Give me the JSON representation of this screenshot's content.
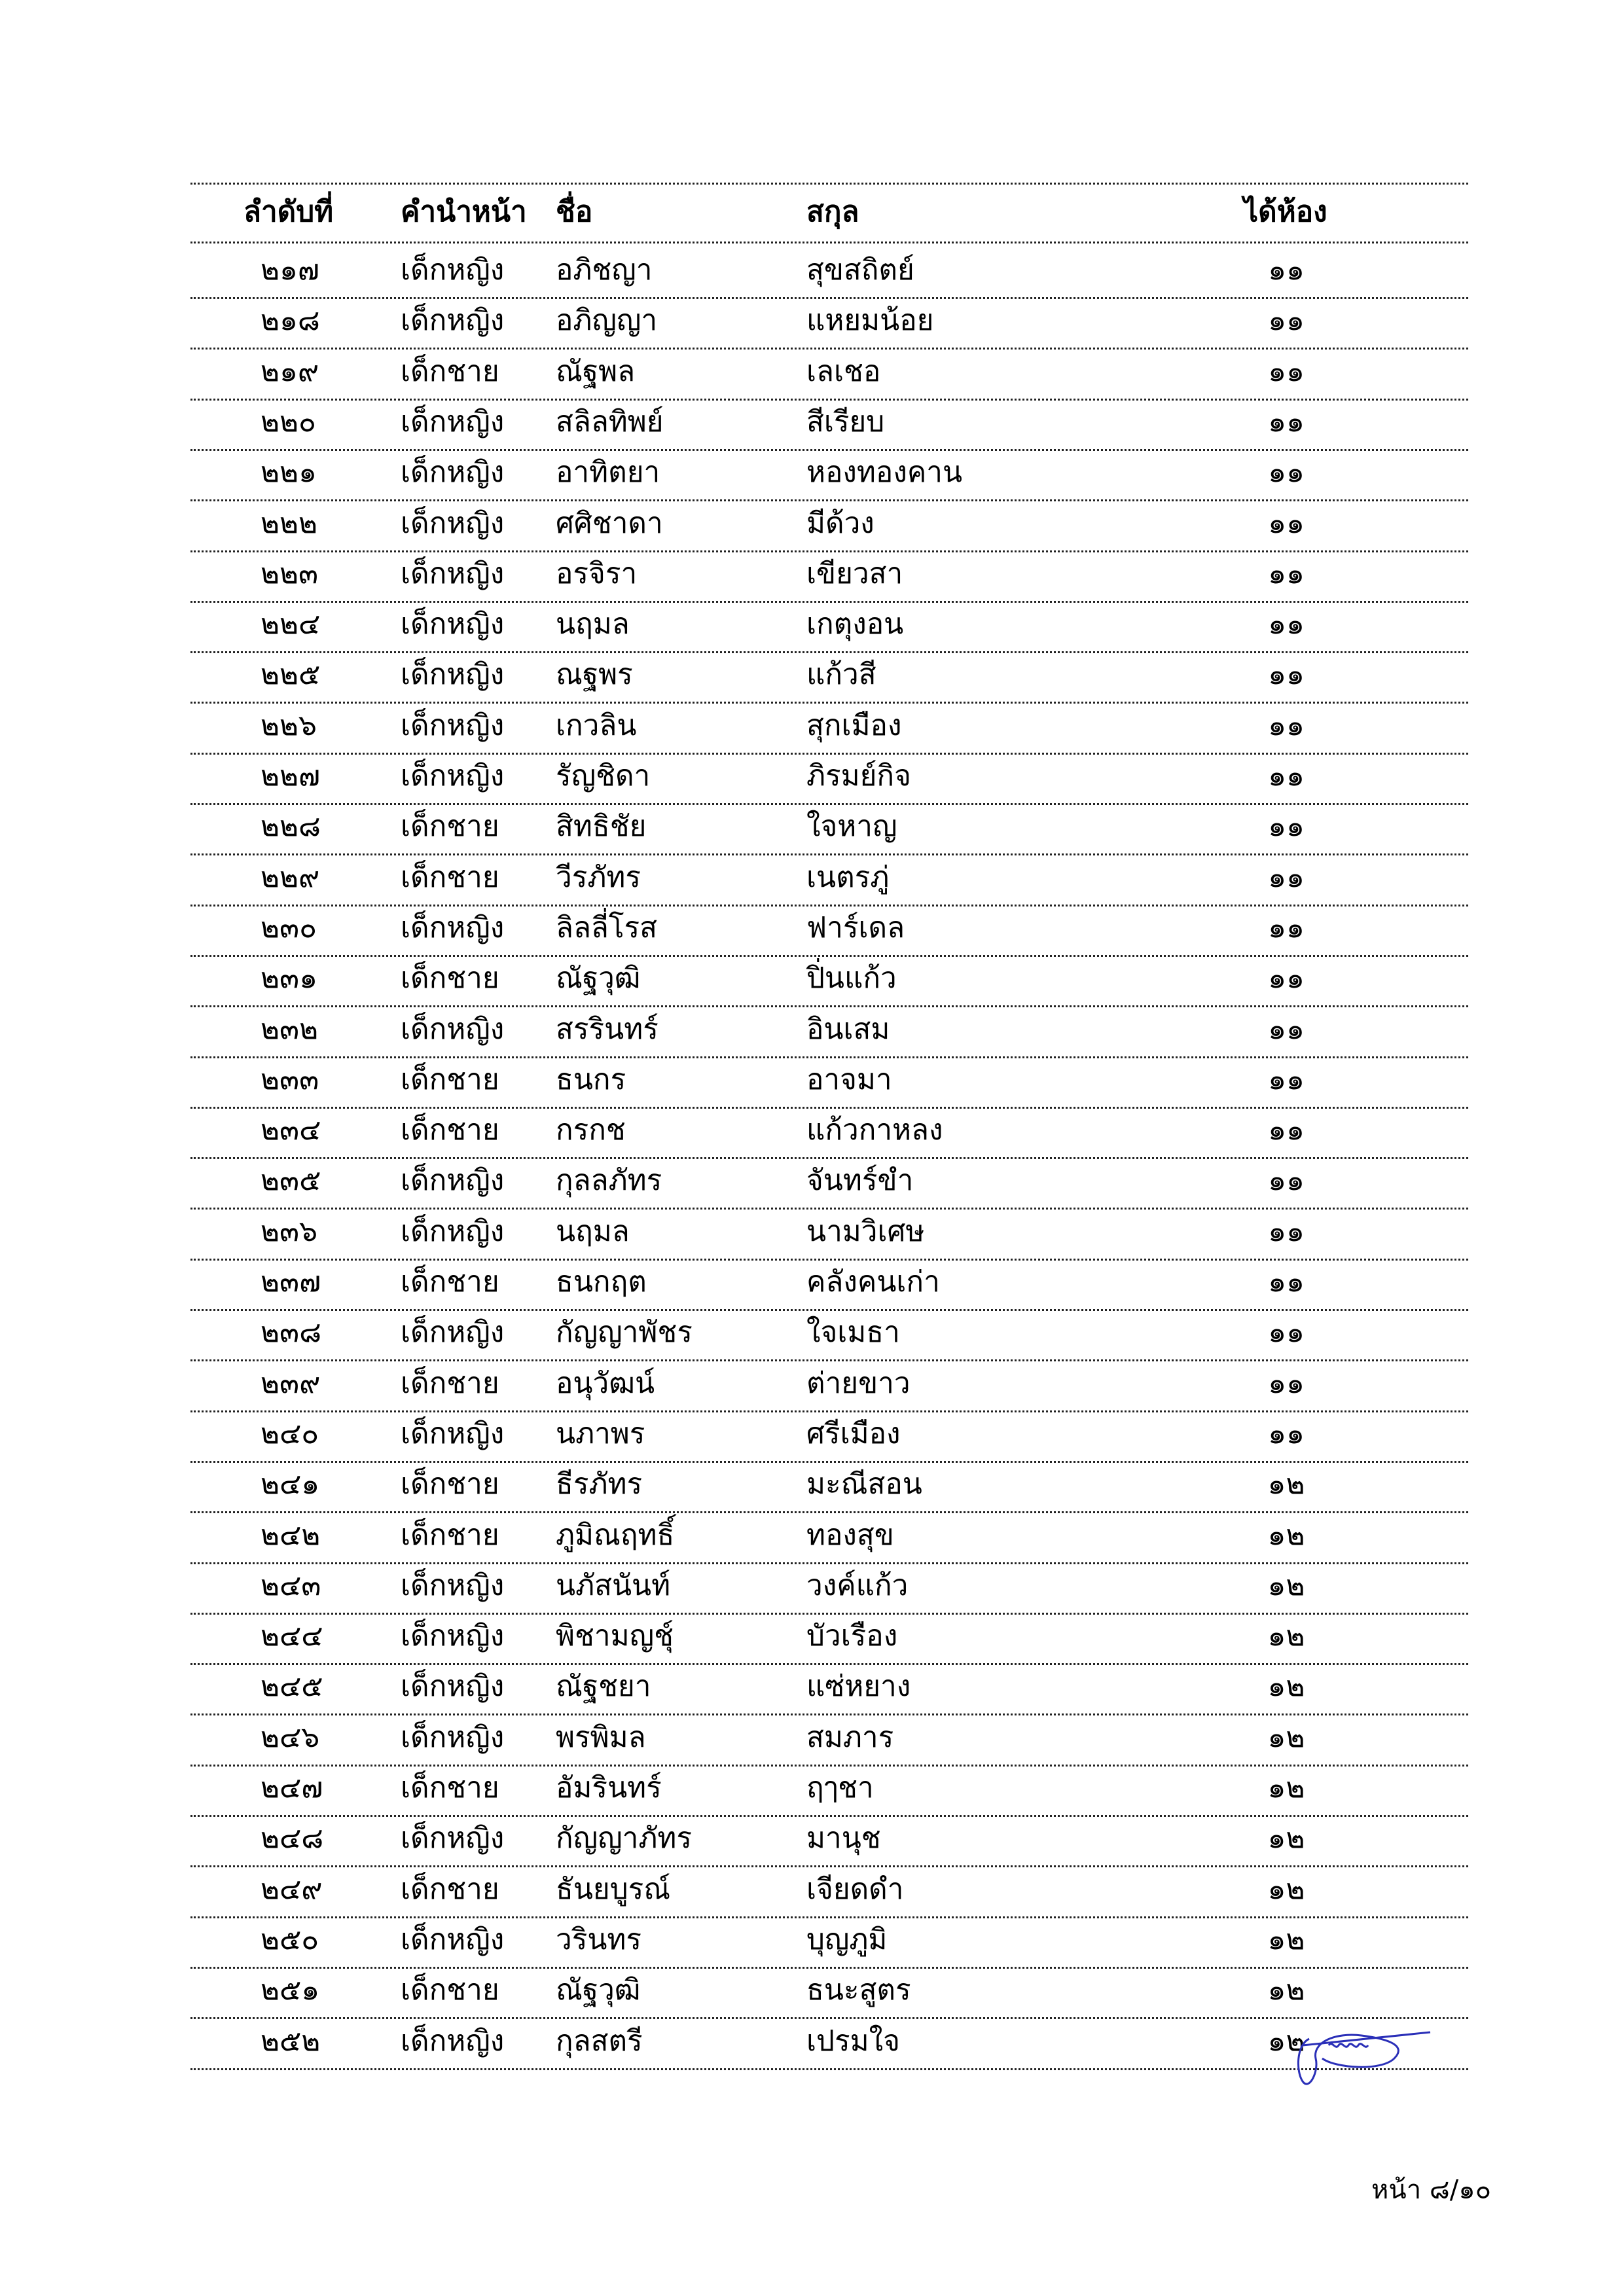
{
  "header": {
    "no": "ลำดับที่",
    "prefix": "คำนำหน้า",
    "first_name": "ชื่อ",
    "last_name": "สกุล",
    "room": "ได้ห้อง"
  },
  "rows": [
    {
      "no": "๒๑๗",
      "prefix": "เด็กหญิง",
      "first": "อภิชญา",
      "last": "สุขสถิตย์",
      "room": "๑๑"
    },
    {
      "no": "๒๑๘",
      "prefix": "เด็กหญิง",
      "first": "อภิญญา",
      "last": "แหยมน้อย",
      "room": "๑๑"
    },
    {
      "no": "๒๑๙",
      "prefix": "เด็กชาย",
      "first": "ณัฐพล",
      "last": "เลเชอ",
      "room": "๑๑"
    },
    {
      "no": "๒๒๐",
      "prefix": "เด็กหญิง",
      "first": "สลิลทิพย์",
      "last": "สีเรียบ",
      "room": "๑๑"
    },
    {
      "no": "๒๒๑",
      "prefix": "เด็กหญิง",
      "first": "อาทิตยา",
      "last": "หองทองคาน",
      "room": "๑๑"
    },
    {
      "no": "๒๒๒",
      "prefix": "เด็กหญิง",
      "first": "ศศิชาดา",
      "last": "มีด้วง",
      "room": "๑๑"
    },
    {
      "no": "๒๒๓",
      "prefix": "เด็กหญิง",
      "first": "อรจิรา",
      "last": "เขียวสา",
      "room": "๑๑"
    },
    {
      "no": "๒๒๔",
      "prefix": "เด็กหญิง",
      "first": "นฤมล",
      "last": "เกตุงอน",
      "room": "๑๑"
    },
    {
      "no": "๒๒๕",
      "prefix": "เด็กหญิง",
      "first": "ณฐพร",
      "last": "แก้วสี",
      "room": "๑๑"
    },
    {
      "no": "๒๒๖",
      "prefix": "เด็กหญิง",
      "first": "เกวลิน",
      "last": "สุกเมือง",
      "room": "๑๑"
    },
    {
      "no": "๒๒๗",
      "prefix": "เด็กหญิง",
      "first": "รัญชิดา",
      "last": "ภิรมย์กิจ",
      "room": "๑๑"
    },
    {
      "no": "๒๒๘",
      "prefix": "เด็กชาย",
      "first": "สิทธิชัย",
      "last": "ใจหาญ",
      "room": "๑๑"
    },
    {
      "no": "๒๒๙",
      "prefix": "เด็กชาย",
      "first": "วีรภัทร",
      "last": "เนตรภู่",
      "room": "๑๑"
    },
    {
      "no": "๒๓๐",
      "prefix": "เด็กหญิง",
      "first": "ลิลลี่โรส",
      "last": "ฟาร์เดล",
      "room": "๑๑"
    },
    {
      "no": "๒๓๑",
      "prefix": "เด็กชาย",
      "first": "ณัฐวุฒิ",
      "last": "ปิ่นแก้ว",
      "room": "๑๑"
    },
    {
      "no": "๒๓๒",
      "prefix": "เด็กหญิง",
      "first": "สรรินทร์",
      "last": "อินเสม",
      "room": "๑๑"
    },
    {
      "no": "๒๓๓",
      "prefix": "เด็กชาย",
      "first": "ธนกร",
      "last": "อาจมา",
      "room": "๑๑"
    },
    {
      "no": "๒๓๔",
      "prefix": "เด็กชาย",
      "first": "กรกช",
      "last": "แก้วกาหลง",
      "room": "๑๑"
    },
    {
      "no": "๒๓๕",
      "prefix": "เด็กหญิง",
      "first": "กุลลภัทร",
      "last": "จันทร์ขำ",
      "room": "๑๑"
    },
    {
      "no": "๒๓๖",
      "prefix": "เด็กหญิง",
      "first": "นฤมล",
      "last": "นามวิเศษ",
      "room": "๑๑"
    },
    {
      "no": "๒๓๗",
      "prefix": "เด็กชาย",
      "first": "ธนกฤต",
      "last": "คลังคนเก่า",
      "room": "๑๑"
    },
    {
      "no": "๒๓๘",
      "prefix": "เด็กหญิง",
      "first": "กัญญาพัชร",
      "last": "ใจเมธา",
      "room": "๑๑"
    },
    {
      "no": "๒๓๙",
      "prefix": "เด็กชาย",
      "first": "อนุวัฒน์",
      "last": "ต่ายขาว",
      "room": "๑๑"
    },
    {
      "no": "๒๔๐",
      "prefix": "เด็กหญิง",
      "first": "นภาพร",
      "last": "ศรีเมือง",
      "room": "๑๑"
    },
    {
      "no": "๒๔๑",
      "prefix": "เด็กชาย",
      "first": "ธีรภัทร",
      "last": "มะณีสอน",
      "room": "๑๒"
    },
    {
      "no": "๒๔๒",
      "prefix": "เด็กชาย",
      "first": "ภูมิณฤทธิ์",
      "last": "ทองสุข",
      "room": "๑๒"
    },
    {
      "no": "๒๔๓",
      "prefix": "เด็กหญิง",
      "first": "นภัสนันท์",
      "last": "วงค์แก้ว",
      "room": "๑๒"
    },
    {
      "no": "๒๔๔",
      "prefix": "เด็กหญิง",
      "first": "พิชามญชุ์",
      "last": "บัวเรือง",
      "room": "๑๒"
    },
    {
      "no": "๒๔๕",
      "prefix": "เด็กหญิง",
      "first": "ณัฐชยา",
      "last": "แซ่หยาง",
      "room": "๑๒"
    },
    {
      "no": "๒๔๖",
      "prefix": "เด็กหญิง",
      "first": "พรพิมล",
      "last": "สมภาร",
      "room": "๑๒"
    },
    {
      "no": "๒๔๗",
      "prefix": "เด็กชาย",
      "first": "อัมรินทร์",
      "last": "ฤๅชา",
      "room": "๑๒"
    },
    {
      "no": "๒๔๘",
      "prefix": "เด็กหญิง",
      "first": "กัญญาภัทร",
      "last": "มานุช",
      "room": "๑๒"
    },
    {
      "no": "๒๔๙",
      "prefix": "เด็กชาย",
      "first": "ธันยบูรณ์",
      "last": "เจียดดำ",
      "room": "๑๒"
    },
    {
      "no": "๒๕๐",
      "prefix": "เด็กหญิง",
      "first": "วรินทร",
      "last": "บุญภูมิ",
      "room": "๑๒"
    },
    {
      "no": "๒๕๑",
      "prefix": "เด็กชาย",
      "first": "ณัฐวุฒิ",
      "last": "ธนะสูตร",
      "room": "๑๒"
    },
    {
      "no": "๒๕๒",
      "prefix": "เด็กหญิง",
      "first": "กุลสตรี",
      "last": "เปรมใจ",
      "room": "๑๒"
    }
  ],
  "footer": {
    "page": "หน้า ๘/๑๐"
  },
  "colors": {
    "signature": "#2a2fb8",
    "rule": "#222222"
  }
}
